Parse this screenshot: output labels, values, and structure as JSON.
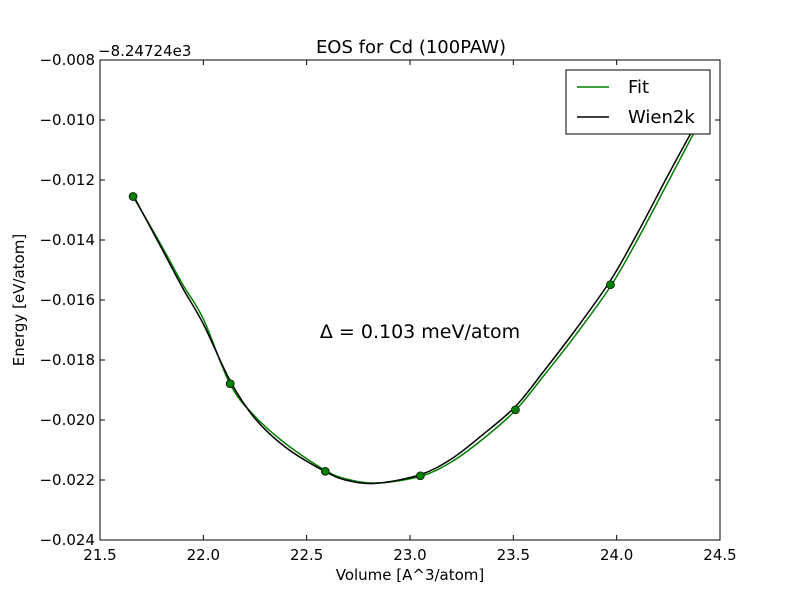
{
  "chart_data": {
    "type": "line",
    "title": "EOS for Cd (100PAW)",
    "xlabel": "Volume [A^3/atom]",
    "ylabel": "Energy [eV/atom]",
    "offset_label": "−8.24724e3",
    "xlim": [
      21.5,
      24.5
    ],
    "ylim": [
      -0.024,
      -0.008
    ],
    "xticks": [
      21.5,
      22.0,
      22.5,
      23.0,
      23.5,
      24.0,
      24.5
    ],
    "xtick_labels": [
      "21.5",
      "22.0",
      "22.5",
      "23.0",
      "23.5",
      "24.0",
      "24.5"
    ],
    "yticks": [
      -0.024,
      -0.022,
      -0.02,
      -0.018,
      -0.016,
      -0.014,
      -0.012,
      -0.01,
      -0.008
    ],
    "ytick_labels": [
      "−0.024",
      "−0.022",
      "−0.020",
      "−0.018",
      "−0.016",
      "−0.014",
      "−0.012",
      "−0.010",
      "−0.008"
    ],
    "grid": false,
    "legend_position": "top-right",
    "annotation": "Δ = 0.103 meV/atom",
    "series": [
      {
        "name": "Fit",
        "color": "#008000",
        "x": [
          21.66,
          21.8,
          21.9,
          22.0,
          22.13,
          22.25,
          22.4,
          22.59,
          22.7,
          22.84,
          23.05,
          23.2,
          23.35,
          23.51,
          23.65,
          23.8,
          23.97,
          24.1,
          24.25,
          24.38
        ],
        "y": [
          -0.01255,
          -0.01422,
          -0.01548,
          -0.01663,
          -0.01881,
          -0.01988,
          -0.0208,
          -0.02168,
          -0.02198,
          -0.0221,
          -0.02188,
          -0.0214,
          -0.02065,
          -0.01968,
          -0.0185,
          -0.01718,
          -0.01555,
          -0.014,
          -0.01205,
          -0.01035
        ]
      },
      {
        "name": "Wien2k",
        "color": "#000000",
        "x": [
          21.66,
          21.8,
          21.9,
          22.0,
          22.13,
          22.25,
          22.4,
          22.59,
          22.7,
          22.84,
          23.05,
          23.2,
          23.35,
          23.51,
          23.65,
          23.8,
          23.97,
          24.1,
          24.25,
          24.37
        ],
        "y": [
          -0.0125,
          -0.0143,
          -0.0156,
          -0.0168,
          -0.0187,
          -0.01995,
          -0.02092,
          -0.02172,
          -0.02202,
          -0.02211,
          -0.02182,
          -0.0213,
          -0.0205,
          -0.01955,
          -0.01835,
          -0.017,
          -0.01535,
          -0.01378,
          -0.01182,
          -0.0103
        ]
      }
    ],
    "points": {
      "color": "#008000",
      "x": [
        21.66,
        22.13,
        22.59,
        23.05,
        23.51,
        23.97
      ],
      "y": [
        -0.01255,
        -0.01879,
        -0.02171,
        -0.02186,
        -0.01966,
        -0.01549
      ]
    }
  }
}
